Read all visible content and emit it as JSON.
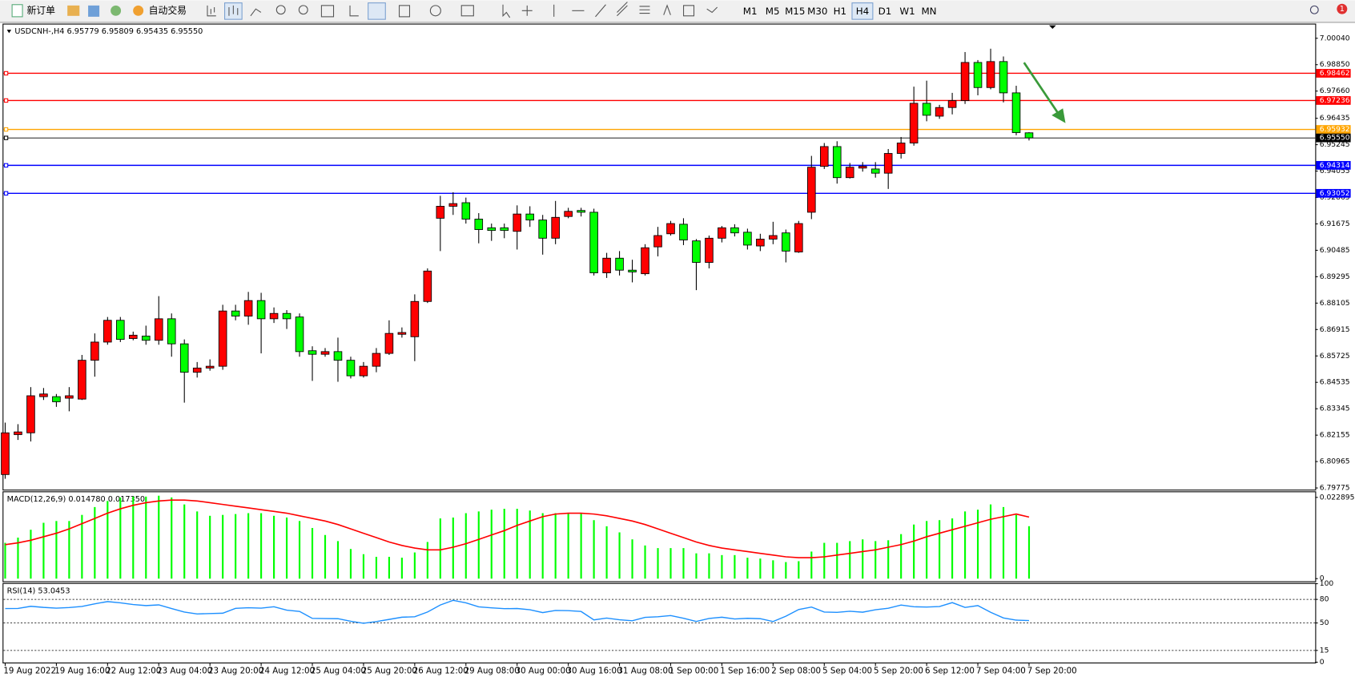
{
  "toolbar": {
    "new_order": "新订单",
    "auto_trading": "自动交易",
    "timeframes": [
      "M1",
      "M5",
      "M15",
      "M30",
      "H1",
      "H4",
      "D1",
      "W1",
      "MN"
    ],
    "active_timeframe": 5,
    "notifications": "1"
  },
  "chart_data": [
    {
      "type": "candlestick",
      "title": "USDCNH-,H4  6.95779 6.95809 6.95435 6.95550",
      "up_color": "#ff0000",
      "down_color": "#00ff00",
      "categories": [
        "19 Aug 2022",
        null,
        null,
        null,
        "19 Aug 16:00",
        null,
        null,
        null,
        "22 Aug 12:00",
        null,
        null,
        null,
        "23 Aug 04:00",
        null,
        null,
        null,
        "23 Aug 20:00",
        null,
        null,
        null,
        "24 Aug 12:00",
        null,
        null,
        null,
        "25 Aug 04:00",
        null,
        null,
        null,
        "25 Aug 20:00",
        null,
        null,
        null,
        "26 Aug 12:00",
        null,
        null,
        null,
        "29 Aug 08:00",
        null,
        null,
        null,
        "30 Aug 00:00",
        null,
        null,
        null,
        "30 Aug 16:00",
        null,
        null,
        null,
        "31 Aug 08:00",
        null,
        null,
        null,
        "1 Sep 00:00",
        null,
        null,
        null,
        "1 Sep 16:00",
        null,
        null,
        null,
        "2 Sep 08:00",
        null,
        null,
        null,
        "5 Sep 04:00",
        null,
        null,
        null,
        "5 Sep 20:00",
        null,
        null,
        null,
        "6 Sep 12:00",
        null,
        null,
        null,
        "7 Sep 04:00",
        null,
        null,
        null,
        "7 Sep 20:00"
      ],
      "open": [
        6.8038,
        6.8218,
        6.8226,
        6.8389,
        6.8389,
        6.8382,
        6.8378,
        6.8553,
        6.8635,
        6.8733,
        6.8651,
        6.8662,
        6.8643,
        6.874,
        6.8627,
        6.8499,
        6.8518,
        6.8526,
        6.8775,
        6.8752,
        6.8822,
        6.874,
        6.8764,
        6.8748,
        6.8596,
        6.858,
        6.8592,
        6.8553,
        6.8483,
        6.8526,
        6.8584,
        6.867,
        6.8659,
        6.8818,
        6.9193,
        6.9247,
        6.9263,
        6.9189,
        6.915,
        6.915,
        6.9134,
        6.9212,
        6.9185,
        6.9103,
        6.9201,
        6.9228,
        6.922,
        6.8947,
        6.9013,
        6.8959,
        6.8943,
        6.9064,
        6.9123,
        6.9166,
        6.9091,
        6.8994,
        6.9103,
        6.915,
        6.913,
        6.9068,
        6.9099,
        6.9127,
        6.9041,
        6.922,
        6.9427,
        6.9516,
        6.9376,
        6.9419,
        6.9415,
        6.9396,
        6.9485,
        6.9532,
        6.9711,
        6.9653,
        6.9692,
        6.9723,
        6.9895,
        6.9782,
        6.9899,
        6.9758,
        6.95779
      ],
      "high": [
        6.8272,
        6.8265,
        6.8432,
        6.8428,
        6.8401,
        6.8432,
        6.8577,
        6.8674,
        6.8748,
        6.8748,
        6.8682,
        6.8709,
        6.8842,
        6.8764,
        6.8647,
        6.8545,
        6.8557,
        6.8803,
        6.8803,
        6.8861,
        6.8857,
        6.8791,
        6.8779,
        6.8764,
        6.8616,
        6.8608,
        6.8655,
        6.8569,
        6.8545,
        6.8608,
        6.8733,
        6.8701,
        6.885,
        6.8967,
        6.9294,
        6.931,
        6.9286,
        6.9216,
        6.9169,
        6.9169,
        6.9251,
        6.9247,
        6.9208,
        6.9271,
        6.924,
        6.924,
        6.9236,
        6.9037,
        6.9045,
        6.9006,
        6.9076,
        6.9154,
        6.9181,
        6.9193,
        6.9099,
        6.9115,
        6.9158,
        6.9166,
        6.9146,
        6.9123,
        6.9177,
        6.9142,
        6.9181,
        6.9474,
        6.9532,
        6.954,
        6.9442,
        6.9446,
        6.9446,
        6.9505,
        6.9559,
        6.9786,
        6.9813,
        6.9704,
        6.9758,
        6.9942,
        6.9906,
        6.9957,
        6.9922,
        6.979,
        6.95809
      ],
      "low": [
        6.8019,
        6.8194,
        6.8187,
        6.8374,
        6.8343,
        6.8323,
        6.8374,
        6.8479,
        6.8623,
        6.8635,
        6.8643,
        6.8623,
        6.8623,
        6.8569,
        6.8362,
        6.8475,
        6.8506,
        6.851,
        6.8733,
        6.8713,
        6.8584,
        6.8721,
        6.8694,
        6.8569,
        6.846,
        6.8569,
        6.8456,
        6.8471,
        6.8475,
        6.8499,
        6.8577,
        6.8655,
        6.8549,
        6.8811,
        6.9045,
        6.9208,
        6.9169,
        6.908,
        6.9091,
        6.9103,
        6.9052,
        6.9154,
        6.9029,
        6.9076,
        6.9193,
        6.9201,
        6.8935,
        6.8924,
        6.8935,
        6.8904,
        6.8935,
        6.9021,
        6.9115,
        6.9072,
        6.8869,
        6.8967,
        6.9084,
        6.9111,
        6.9052,
        6.9045,
        6.9076,
        6.8994,
        6.9037,
        6.9189,
        6.9415,
        6.9349,
        6.9372,
        6.9403,
        6.9376,
        6.9325,
        6.9462,
        6.952,
        6.963,
        6.9641,
        6.9661,
        6.9708,
        6.9747,
        6.9774,
        6.9715,
        6.9567,
        6.95435
      ],
      "close": [
        6.8226,
        6.823,
        6.8393,
        6.8401,
        6.8366,
        6.8393,
        6.8553,
        6.8635,
        6.8733,
        6.8647,
        6.8666,
        6.8643,
        6.874,
        6.8627,
        6.8499,
        6.8518,
        6.8526,
        6.8775,
        6.8752,
        6.8822,
        6.874,
        6.8764,
        6.874,
        6.8592,
        6.858,
        6.8592,
        6.8553,
        6.8483,
        6.8526,
        6.8584,
        6.8674,
        6.8678,
        6.8818,
        6.8955,
        6.9247,
        6.9259,
        6.9189,
        6.9142,
        6.9138,
        6.9138,
        6.9212,
        6.9185,
        6.9103,
        6.9197,
        6.9224,
        6.922,
        6.8947,
        6.9013,
        6.8959,
        6.8951,
        6.906,
        6.9115,
        6.9169,
        6.9095,
        6.8994,
        6.9103,
        6.915,
        6.9127,
        6.9072,
        6.9099,
        6.9115,
        6.9045,
        6.9169,
        6.9423,
        6.9516,
        6.9376,
        6.9423,
        6.9427,
        6.9396,
        6.9485,
        6.9532,
        6.9711,
        6.9657,
        6.9692,
        6.9723,
        6.9895,
        6.9782,
        6.9899,
        6.9758,
        6.9579,
        6.9555
      ],
      "ylim": [
        6.797,
        7.0066
      ],
      "yticks": [
        {
          "value": 7.0004,
          "label": "7.00040"
        },
        {
          "value": 6.9885,
          "label": "6.98850"
        },
        {
          "value": 6.9766,
          "label": "6.97660"
        },
        {
          "value": 6.96435,
          "label": "6.96435"
        },
        {
          "value": 6.95245,
          "label": "6.95245"
        },
        {
          "value": 6.94055,
          "label": "6.94055"
        },
        {
          "value": 6.92865,
          "label": "6.92865"
        },
        {
          "value": 6.91675,
          "label": "6.91675"
        },
        {
          "value": 6.90485,
          "label": "6.90485"
        },
        {
          "value": 6.89295,
          "label": "6.89295"
        },
        {
          "value": 6.88105,
          "label": "6.88105"
        },
        {
          "value": 6.86915,
          "label": "6.86915"
        },
        {
          "value": 6.85725,
          "label": "6.85725"
        },
        {
          "value": 6.84535,
          "label": "6.84535"
        },
        {
          "value": 6.83345,
          "label": "6.83345"
        },
        {
          "value": 6.82155,
          "label": "6.82155"
        },
        {
          "value": 6.80965,
          "label": "6.80965"
        },
        {
          "value": 6.79775,
          "label": "6.79775"
        }
      ],
      "hlines": [
        {
          "value": 6.98462,
          "color": "#ff0000"
        },
        {
          "value": 6.97236,
          "color": "#ff0000"
        },
        {
          "value": 6.95932,
          "color": "#ffa500"
        },
        {
          "value": 6.9555,
          "label": "6.95550",
          "color": "#000000"
        },
        {
          "value": 6.94314,
          "color": "#0000ff"
        },
        {
          "value": 6.93052,
          "color": "#0000ff"
        }
      ]
    },
    {
      "type": "macd",
      "title": "MACD(12,26,9) 0.014780 0.017350",
      "series": [
        {
          "color": "#00ff00",
          "values": [
            0.01009,
            0.01156,
            0.01378,
            0.01574,
            0.01624,
            0.01624,
            0.01796,
            0.02017,
            0.02189,
            0.02288,
            0.02312,
            0.02312,
            0.02337,
            0.02288,
            0.02091,
            0.01894,
            0.01771,
            0.01796,
            0.0182,
            0.01845,
            0.01845,
            0.01771,
            0.01722,
            0.01624,
            0.01427,
            0.0123,
            0.01058,
            0.00836,
            0.00689,
            0.00615,
            0.00615,
            0.0059,
            0.00738,
            0.01033,
            0.01697,
            0.01722,
            0.01845,
            0.01894,
            0.01943,
            0.01968,
            0.01968,
            0.01919,
            0.01845,
            0.01845,
            0.01845,
            0.01845,
            0.01648,
            0.01476,
            0.01304,
            0.01107,
            0.00935,
            0.00861,
            0.00861,
            0.00861,
            0.00713,
            0.00713,
            0.00664,
            0.00664,
            0.0059,
            0.00566,
            0.00517,
            0.00467,
            0.00492,
            0.00763,
            0.01009,
            0.01009,
            0.01058,
            0.01107,
            0.01058,
            0.01082,
            0.01255,
            0.01525,
            0.01624,
            0.01648,
            0.01697,
            0.01894,
            0.01943,
            0.02091,
            0.02017,
            0.01796,
            0.01478
          ]
        },
        {
          "color": "#ff0000",
          "values": [
            0.00959,
            0.01009,
            0.01082,
            0.01181,
            0.01279,
            0.01402,
            0.0155,
            0.01697,
            0.01845,
            0.01968,
            0.02066,
            0.0214,
            0.02189,
            0.02214,
            0.02214,
            0.02189,
            0.0214,
            0.02091,
            0.02042,
            0.01993,
            0.01943,
            0.01894,
            0.01845,
            0.01771,
            0.01697,
            0.01624,
            0.01525,
            0.01402,
            0.01279,
            0.01156,
            0.01033,
            0.00935,
            0.00861,
            0.00812,
            0.00812,
            0.00886,
            0.00984,
            0.01107,
            0.0123,
            0.01353,
            0.01501,
            0.01624,
            0.01747,
            0.0182,
            0.01845,
            0.01845,
            0.0182,
            0.01771,
            0.01697,
            0.01624,
            0.01525,
            0.01402,
            0.01279,
            0.01156,
            0.01033,
            0.00935,
            0.00861,
            0.00812,
            0.00763,
            0.00713,
            0.00664,
            0.00615,
            0.0059,
            0.0059,
            0.00615,
            0.00664,
            0.00713,
            0.00763,
            0.00812,
            0.00886,
            0.00959,
            0.01058,
            0.01181,
            0.01279,
            0.01378,
            0.01476,
            0.01574,
            0.01673,
            0.01747,
            0.0182,
            0.01735
          ]
        }
      ],
      "ylim": [
        -0.00074,
        0.02435
      ],
      "yticks": [
        0.022895,
        0
      ]
    },
    {
      "type": "rsi",
      "title": "RSI(14) 53.0453",
      "color": "#1e90ff",
      "values": [
        68.3,
        68.5,
        71.2,
        69.8,
        68.9,
        69.6,
        71.0,
        74.4,
        77.2,
        75.6,
        73.4,
        72.1,
        73.0,
        68.3,
        63.9,
        61.5,
        62.0,
        62.4,
        68.6,
        69.4,
        68.9,
        70.6,
        66.3,
        64.7,
        55.8,
        55.6,
        55.4,
        52.1,
        49.6,
        51.8,
        54.5,
        57.3,
        57.9,
        63.9,
        72.9,
        78.8,
        75.6,
        70.5,
        69.2,
        68.2,
        68.4,
        66.8,
        63.2,
        65.9,
        65.7,
        64.6,
        53.9,
        56.2,
        54.1,
        52.8,
        57.1,
        57.9,
        59.4,
        56.0,
        51.9,
        55.7,
        57.3,
        55.1,
        55.9,
        55.4,
        51.8,
        58.6,
        67.1,
        70.2,
        63.9,
        63.5,
        64.9,
        63.7,
        66.8,
        68.7,
        72.8,
        70.6,
        70.3,
        70.9,
        75.9,
        69.8,
        72.1,
        63.6,
        56.4,
        53.6,
        53.0453
      ],
      "ylim": [
        0,
        100
      ],
      "yticks": [
        100,
        80,
        50,
        15,
        0
      ],
      "levels": [
        80,
        50,
        15
      ]
    }
  ]
}
